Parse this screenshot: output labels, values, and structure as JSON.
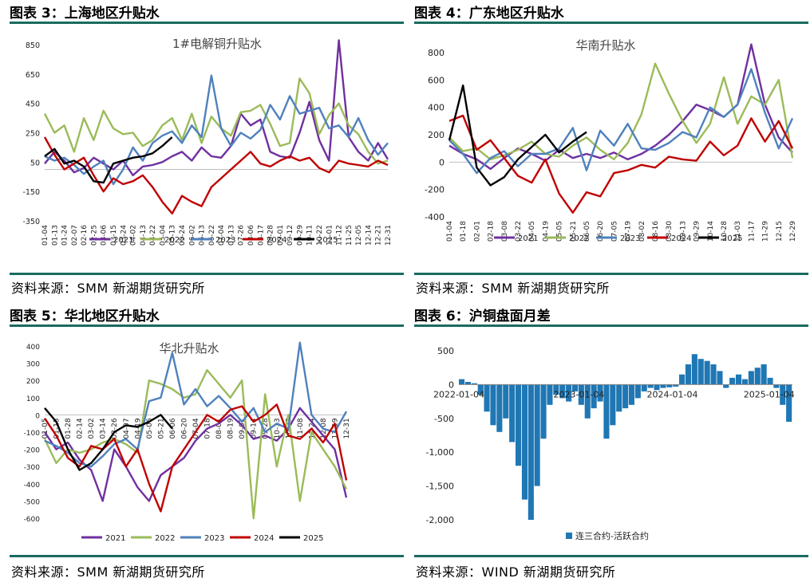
{
  "panels": [
    {
      "title": "图表 3：上海地区升贴水",
      "source": "资料来源：SMM 新湖期货研究所"
    },
    {
      "title": "图表 4：广东地区升贴水",
      "source": "资料来源：SMM 新湖期货研究所"
    },
    {
      "title": "图表 5：华北地区升贴水",
      "source": "资料来源：SMM 新湖期货研究所"
    },
    {
      "title": "图表 6：沪铜盘面月差",
      "source": "资料来源：WIND 新湖期货研究所"
    }
  ],
  "colors": {
    "2021": "#7030a0",
    "2022": "#9bbb59",
    "2023": "#4f81bd",
    "2024": "#c00000",
    "2025": "#000000",
    "spread": "#1f77b4",
    "rule": "#1a6b5f"
  },
  "chart_data": [
    {
      "type": "line",
      "title": "1#电解铜升贴水",
      "ylim": [
        -350,
        850
      ],
      "yticks": [
        850,
        650,
        450,
        250,
        50,
        -150,
        -350
      ],
      "x_labels": [
        "01-04",
        "01-13",
        "01-24",
        "02-07",
        "02-16",
        "02-25",
        "03-06",
        "03-15",
        "03-24",
        "04-02",
        "04-13",
        "04-22",
        "05-04",
        "05-13",
        "05-24",
        "06-02",
        "06-13",
        "06-22",
        "07-04",
        "07-13",
        "07-26",
        "08-06",
        "08-17",
        "08-28",
        "09-01",
        "09-12",
        "09-29",
        "10-11",
        "10-22",
        "11-01",
        "11-12",
        "11-25",
        "12-05",
        "12-14",
        "12-21",
        "12-31"
      ],
      "legend": [
        "2021",
        "2022",
        "2023",
        "2024",
        "2025"
      ],
      "series": [
        {
          "name": "2021",
          "values": [
            40,
            120,
            60,
            -20,
            10,
            80,
            40,
            0,
            60,
            -40,
            20,
            30,
            50,
            90,
            120,
            60,
            150,
            90,
            80,
            160,
            380,
            300,
            340,
            120,
            90,
            80,
            250,
            460,
            200,
            60,
            880,
            220,
            120,
            60,
            180,
            70
          ]
        },
        {
          "name": "2022",
          "values": [
            380,
            250,
            300,
            120,
            350,
            200,
            400,
            280,
            240,
            250,
            160,
            200,
            300,
            350,
            200,
            380,
            180,
            360,
            280,
            230,
            390,
            400,
            440,
            310,
            160,
            180,
            620,
            520,
            240,
            370,
            450,
            300,
            240,
            120,
            40,
            60
          ]
        },
        {
          "name": "2023",
          "values": [
            90,
            60,
            80,
            30,
            -30,
            20,
            60,
            -100,
            0,
            150,
            60,
            180,
            230,
            260,
            180,
            300,
            220,
            640,
            280,
            160,
            250,
            210,
            270,
            440,
            340,
            500,
            380,
            400,
            420,
            280,
            300,
            220,
            350,
            200,
            100,
            180
          ]
        },
        {
          "name": "2024",
          "values": [
            220,
            100,
            0,
            40,
            80,
            -40,
            -150,
            -60,
            -100,
            -80,
            -40,
            -120,
            -220,
            -300,
            -180,
            -220,
            -250,
            -120,
            -60,
            0,
            60,
            120,
            40,
            20,
            60,
            90,
            60,
            80,
            10,
            -20,
            60,
            40,
            30,
            20,
            60,
            30
          ]
        },
        {
          "name": "2025",
          "values": [
            90,
            140,
            40,
            60,
            20,
            -80,
            -90,
            40,
            60,
            80,
            90,
            110,
            160,
            220
          ]
        }
      ]
    },
    {
      "type": "line",
      "title": "华南升贴水",
      "ylim": [
        -400,
        800
      ],
      "yticks": [
        800,
        600,
        400,
        200,
        0,
        -200,
        -400
      ],
      "x_labels": [
        "01-04",
        "01-18",
        "02-01",
        "02-18",
        "03-08",
        "03-22",
        "04-05",
        "04-19",
        "05-05",
        "05-21",
        "06-05",
        "06-20",
        "07-05",
        "07-19",
        "08-02",
        "08-16",
        "08-30",
        "09-13",
        "09-29",
        "10-14",
        "10-28",
        "11-03",
        "11-17",
        "11-29",
        "12-15",
        "12-29"
      ],
      "legend": [
        "2021",
        "2022",
        "2023",
        "2024",
        "2025"
      ],
      "series": [
        {
          "name": "2021",
          "values": [
            120,
            60,
            20,
            -50,
            30,
            100,
            60,
            10,
            90,
            30,
            60,
            30,
            70,
            20,
            60,
            120,
            200,
            300,
            420,
            380,
            330,
            420,
            860,
            420,
            180,
            70
          ]
        },
        {
          "name": "2022",
          "values": [
            180,
            80,
            100,
            20,
            50,
            90,
            150,
            60,
            40,
            120,
            180,
            90,
            20,
            140,
            350,
            720,
            500,
            300,
            140,
            280,
            620,
            280,
            480,
            420,
            600,
            30
          ]
        },
        {
          "name": "2023",
          "values": [
            160,
            60,
            -80,
            30,
            80,
            -30,
            60,
            60,
            100,
            250,
            -60,
            230,
            120,
            280,
            100,
            90,
            140,
            220,
            180,
            400,
            330,
            420,
            680,
            360,
            100,
            320
          ]
        },
        {
          "name": "2024",
          "values": [
            300,
            340,
            90,
            160,
            30,
            -100,
            -150,
            20,
            -230,
            -370,
            -220,
            -250,
            -80,
            -60,
            -20,
            -40,
            40,
            20,
            10,
            150,
            50,
            120,
            320,
            150,
            300,
            100
          ]
        },
        {
          "name": "2025",
          "values": [
            160,
            560,
            -40,
            -170,
            -110,
            20,
            110,
            200,
            70,
            150,
            220
          ]
        }
      ]
    },
    {
      "type": "line",
      "title": "华北升贴水",
      "ylim": [
        -600,
        400
      ],
      "yticks": [
        400,
        300,
        200,
        100,
        0,
        -100,
        -200,
        -300,
        -400,
        -500,
        -600
      ],
      "x_labels": [
        "01-05",
        "01-15",
        "01-28",
        "02-14",
        "03-02",
        "03-14",
        "03-26",
        "04-07",
        "04-19",
        "05-06",
        "05-21",
        "06-06",
        "06-20",
        "07-04",
        "07-18",
        "08-01",
        "08-19",
        "09-01",
        "09-14",
        "09-28",
        "10-13",
        "10-27",
        "11-08",
        "11-24",
        "12-08",
        "12-19",
        "12-31"
      ],
      "legend": [
        "2021",
        "2022",
        "2023",
        "2024",
        "2025"
      ],
      "series": [
        {
          "name": "2021",
          "values": [
            -100,
            -200,
            -160,
            -260,
            -320,
            -500,
            -200,
            -300,
            -420,
            -500,
            -350,
            -300,
            -250,
            -150,
            -80,
            -50,
            0,
            -60,
            -140,
            -120,
            -150,
            -80,
            40,
            -40,
            -120,
            -200,
            -480
          ]
        },
        {
          "name": "2022",
          "values": [
            -140,
            -280,
            -200,
            -220,
            -200,
            -160,
            -140,
            -170,
            -220,
            200,
            180,
            150,
            100,
            120,
            260,
            180,
            100,
            200,
            -600,
            120,
            -300,
            0,
            -500,
            -100,
            -200,
            -300,
            -430
          ]
        },
        {
          "name": "2023",
          "values": [
            -150,
            -180,
            -220,
            -280,
            -300,
            -240,
            -170,
            -140,
            -200,
            80,
            100,
            360,
            60,
            150,
            50,
            110,
            40,
            -40,
            40,
            -100,
            -50,
            -80,
            420,
            0,
            -80,
            -100,
            20
          ]
        },
        {
          "name": "2024",
          "values": [
            -20,
            -120,
            -250,
            -300,
            -180,
            -200,
            -140,
            -300,
            -200,
            -400,
            -560,
            -300,
            -200,
            -100,
            0,
            -40,
            30,
            50,
            -40,
            0,
            60,
            -120,
            -140,
            -80,
            -160,
            -50,
            -380
          ]
        },
        {
          "name": "2025",
          "values": [
            40,
            -40,
            -200,
            -320,
            -280,
            -200,
            -100,
            -60,
            -70,
            -40,
            0,
            -80
          ]
        }
      ]
    },
    {
      "type": "bar",
      "title": "",
      "ylim": [
        -2000,
        500
      ],
      "yticks": [
        "500",
        "0",
        "-500",
        "-1,000",
        "-1,500",
        "-2,000"
      ],
      "x_labels": [
        "2022-01-04",
        "2023-01-04",
        "2024-01-04",
        "2025-01-04"
      ],
      "legend": [
        "连三合约-活跃合约"
      ],
      "series": [
        {
          "name": "连三合约-活跃合约",
          "values": [
            80,
            40,
            20,
            -150,
            -400,
            -600,
            -700,
            -500,
            -850,
            -1200,
            -1700,
            -2000,
            -1500,
            -800,
            -300,
            -150,
            -200,
            -250,
            -100,
            -300,
            -500,
            -350,
            -250,
            -800,
            -600,
            -400,
            -350,
            -300,
            -200,
            -100,
            -50,
            -80,
            -50,
            -40,
            -30,
            150,
            300,
            450,
            380,
            350,
            300,
            200,
            -50,
            100,
            150,
            80,
            200,
            250,
            300,
            100,
            -50,
            -300,
            -550
          ]
        }
      ]
    }
  ]
}
